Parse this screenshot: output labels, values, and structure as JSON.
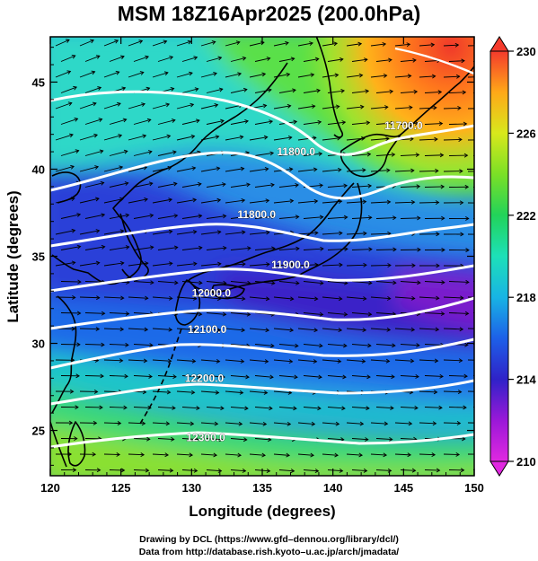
{
  "title": "MSM 18Z16Apr2025 (200.0hPa)",
  "x_axis": {
    "label": "Longitude (degrees)",
    "range": [
      120,
      150
    ],
    "ticks": [
      "120",
      "125",
      "130",
      "135",
      "140",
      "145",
      "150"
    ]
  },
  "y_axis": {
    "label": "Latitude  (degrees)",
    "range": [
      22.4,
      47.6
    ],
    "ticks": [
      "25",
      "30",
      "35",
      "40",
      "45"
    ]
  },
  "colorbar": {
    "min": 210,
    "max": 230,
    "ticks": [
      "210",
      "214",
      "218",
      "222",
      "226",
      "230"
    ],
    "colors": [
      "#e028e0",
      "#9a18d8",
      "#2f22c8",
      "#1d60e8",
      "#18b4e4",
      "#1de0b8",
      "#22d35a",
      "#7be026",
      "#d8e81c",
      "#ffa818",
      "#ff6a1c",
      "#f43a2c"
    ]
  },
  "contours": [
    {
      "label": "11800.0",
      "label_lon": 137.4,
      "label_lat": 41.0
    },
    {
      "label": "11800.0",
      "label_lon": 134.6,
      "label_lat": 37.4
    },
    {
      "label": "11900.0",
      "label_lon": 137.0,
      "label_lat": 34.5
    },
    {
      "label": "12000.0",
      "label_lon": 131.4,
      "label_lat": 32.9
    },
    {
      "label": "12100.0",
      "label_lon": 131.1,
      "label_lat": 30.8
    },
    {
      "label": "12200.0",
      "label_lon": 130.9,
      "label_lat": 28.0
    },
    {
      "label": "12300.0",
      "label_lon": 131.0,
      "label_lat": 24.6
    },
    {
      "label": "11700.0",
      "label_lon": 145.0,
      "label_lat": 42.5
    }
  ],
  "footer": {
    "line1": "Drawing by DCL (https://www.gfd–dennou.org/library/dcl/)",
    "line2": "Data from http://database.rish.kyoto–u.ac.jp/arch/jmadata/"
  }
}
